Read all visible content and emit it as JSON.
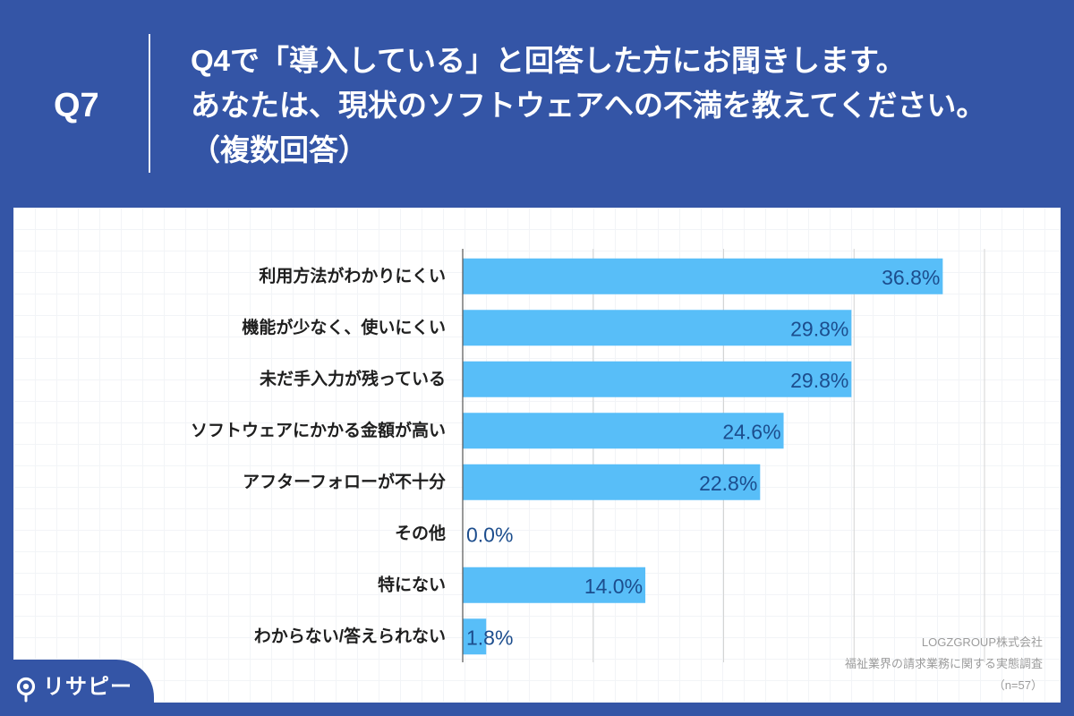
{
  "colors": {
    "background": "#3455a6",
    "panel": "#ffffff",
    "bar": "#58bef8",
    "value_label": "#1c4d8d",
    "category_label": "#1e1e1e",
    "source_text": "#9c9c9c"
  },
  "header": {
    "question_number": "Q7",
    "question_lines": [
      "Q4で「導入している」と回答した方にお聞きします。",
      "あなたは、現状のソフトウェアへの不満を教えてください。",
      "（複数回答）"
    ]
  },
  "chart_data": {
    "type": "bar",
    "orientation": "horizontal",
    "categories": [
      "利用方法がわかりにくい",
      "機能が少なく、使いにくい",
      "未だ手入力が残っている",
      "ソフトウェアにかかる金額が高い",
      "アフターフォローが不十分",
      "その他",
      "特にない",
      "わからない/答えられない"
    ],
    "values": [
      36.8,
      29.8,
      29.8,
      24.6,
      22.8,
      0.0,
      14.0,
      1.8
    ],
    "value_labels": [
      "36.8%",
      "29.8%",
      "29.8%",
      "24.6%",
      "22.8%",
      "0.0%",
      "14.0%",
      "1.8%"
    ],
    "xlim": [
      0,
      40
    ],
    "grid": true
  },
  "source": {
    "company": "LOGZGROUP株式会社",
    "survey": "福祉業界の請求業務に関する実態調査",
    "sample_size": "（n=57）"
  },
  "logo": {
    "icon": "location-pin-icon",
    "text": "リサピー"
  }
}
